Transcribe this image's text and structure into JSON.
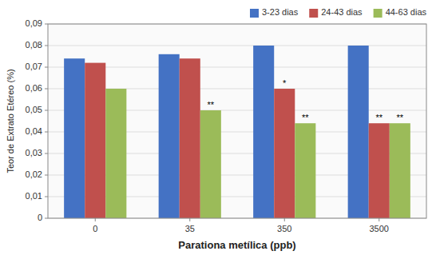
{
  "chart_data": {
    "type": "bar",
    "categories": [
      "0",
      "35",
      "350",
      "3500"
    ],
    "series": [
      {
        "name": "3-23 dias",
        "color": "#4472C4",
        "values": [
          0.074,
          0.076,
          0.08,
          0.08
        ]
      },
      {
        "name": "24-43 dias",
        "color": "#C0504D",
        "values": [
          0.072,
          0.074,
          0.06,
          0.044
        ]
      },
      {
        "name": "44-63 dias",
        "color": "#9BBB59",
        "values": [
          0.06,
          0.05,
          0.044,
          0.044
        ]
      }
    ],
    "xlabel": "Parationa metílica (ppb)",
    "ylabel": "Teor de Extrato Etéreo (%)",
    "ylim": [
      0,
      0.09
    ],
    "yticks": [
      0,
      {
        "value": 0.01,
        "label": "0,01"
      },
      {
        "value": 0.02,
        "label": "0,02"
      },
      {
        "value": 0.03,
        "label": "0,03"
      },
      {
        "value": 0.04,
        "label": "0,04"
      },
      {
        "value": 0.05,
        "label": "0,05"
      },
      {
        "value": 0.06,
        "label": "0,06"
      },
      {
        "value": 0.07,
        "label": "0,07"
      },
      {
        "value": 0.08,
        "label": "0,08"
      },
      {
        "value": 0.09,
        "label": "0,09"
      }
    ],
    "grid": true,
    "legend": "upper right",
    "annotations": [
      {
        "text": "**",
        "category": "35",
        "series": "44-63 dias"
      },
      {
        "text": "*",
        "category": "350",
        "series": "24-43 dias"
      },
      {
        "text": "**",
        "category": "350",
        "series": "44-63 dias"
      },
      {
        "text": "**",
        "category": "3500",
        "series": "24-43 dias"
      },
      {
        "text": "**",
        "category": "3500",
        "series": "44-63 dias"
      }
    ]
  }
}
